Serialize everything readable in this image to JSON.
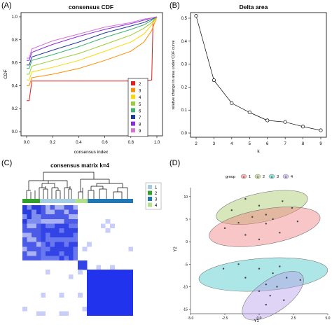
{
  "figure": {
    "panels": [
      {
        "label": "(A)",
        "title": "consensus CDF"
      },
      {
        "label": "(B)",
        "title": "Delta area"
      },
      {
        "label": "(C)",
        "title": "consensus matrix k=4"
      },
      {
        "label": "(D)",
        "title": ""
      }
    ]
  },
  "chart_data": [
    {
      "type": "line",
      "title": "consensus CDF",
      "xlabel": "consensus index",
      "ylabel": "CDF",
      "xlim": [
        0,
        1
      ],
      "ylim": [
        0,
        1
      ],
      "xticks": [
        "0.0",
        "0.2",
        "0.4",
        "0.6",
        "0.8",
        "1.0"
      ],
      "yticks": [
        "0.0",
        "0.2",
        "0.4",
        "0.6",
        "0.8",
        "1.0"
      ],
      "legend": {
        "position": "bottom-right"
      },
      "series": [
        {
          "name": "2",
          "color": "#e41a1c",
          "x": [
            0,
            0.02,
            0.04,
            0.1,
            0.3,
            0.6,
            0.9,
            0.96,
            0.97,
            1.0
          ],
          "y": [
            0.27,
            0.27,
            0.44,
            0.44,
            0.44,
            0.44,
            0.44,
            0.45,
            0.95,
            1.0
          ]
        },
        {
          "name": "3",
          "color": "#ff8c00",
          "x": [
            0,
            0.02,
            0.04,
            0.2,
            0.4,
            0.6,
            0.8,
            0.9,
            0.96,
            1.0
          ],
          "y": [
            0.4,
            0.4,
            0.47,
            0.5,
            0.55,
            0.62,
            0.7,
            0.78,
            0.88,
            1.0
          ]
        },
        {
          "name": "4",
          "color": "#ffd700",
          "x": [
            0,
            0.02,
            0.04,
            0.2,
            0.4,
            0.6,
            0.8,
            0.9,
            0.96,
            1.0
          ],
          "y": [
            0.45,
            0.45,
            0.52,
            0.56,
            0.62,
            0.7,
            0.78,
            0.85,
            0.93,
            1.0
          ]
        },
        {
          "name": "5",
          "color": "#9acd32",
          "x": [
            0,
            0.02,
            0.04,
            0.2,
            0.4,
            0.6,
            0.8,
            0.9,
            0.96,
            1.0
          ],
          "y": [
            0.5,
            0.5,
            0.57,
            0.62,
            0.68,
            0.76,
            0.84,
            0.9,
            0.95,
            1.0
          ]
        },
        {
          "name": "6",
          "color": "#3cb371",
          "x": [
            0,
            0.02,
            0.04,
            0.2,
            0.4,
            0.6,
            0.8,
            0.9,
            0.96,
            1.0
          ],
          "y": [
            0.55,
            0.55,
            0.62,
            0.67,
            0.74,
            0.82,
            0.89,
            0.93,
            0.97,
            1.0
          ]
        },
        {
          "name": "7",
          "color": "#1e3c9e",
          "x": [
            0,
            0.02,
            0.04,
            0.2,
            0.4,
            0.6,
            0.8,
            0.9,
            0.96,
            1.0
          ],
          "y": [
            0.58,
            0.58,
            0.65,
            0.71,
            0.78,
            0.86,
            0.92,
            0.95,
            0.98,
            1.0
          ]
        },
        {
          "name": "8",
          "color": "#8a2be2",
          "x": [
            0,
            0.02,
            0.04,
            0.2,
            0.4,
            0.6,
            0.8,
            0.9,
            0.96,
            1.0
          ],
          "y": [
            0.62,
            0.62,
            0.69,
            0.76,
            0.83,
            0.89,
            0.94,
            0.97,
            0.99,
            1.0
          ]
        },
        {
          "name": "9",
          "color": "#da70d6",
          "x": [
            0,
            0.02,
            0.04,
            0.2,
            0.4,
            0.6,
            0.8,
            0.9,
            0.96,
            1.0
          ],
          "y": [
            0.64,
            0.64,
            0.72,
            0.79,
            0.85,
            0.91,
            0.95,
            0.98,
            0.99,
            1.0
          ]
        }
      ]
    },
    {
      "type": "line",
      "title": "Delta area",
      "xlabel": "k",
      "ylabel": "relative change in area under CDF curve",
      "x": [
        2,
        3,
        4,
        5,
        6,
        7,
        8,
        9
      ],
      "y": [
        0.51,
        0.23,
        0.13,
        0.09,
        0.055,
        0.048,
        0.028,
        0.012
      ],
      "xlim": [
        2,
        9
      ],
      "ylim": [
        0,
        0.5
      ],
      "xticks": [
        "2",
        "3",
        "4",
        "5",
        "6",
        "7",
        "8",
        "9"
      ],
      "yticks": [
        "0.0",
        "0.1",
        "0.2",
        "0.3",
        "0.4",
        "0.5"
      ]
    },
    {
      "type": "heatmap",
      "title": "consensus matrix k=4",
      "legend": {
        "position": "right",
        "entries": [
          {
            "label": "1",
            "color": "#a6cee3"
          },
          {
            "label": "2",
            "color": "#33a02c"
          },
          {
            "label": "3",
            "color": "#1f78b4"
          },
          {
            "label": "4",
            "color": "#b2df8a"
          }
        ]
      },
      "cluster_bar": [
        {
          "cluster": "2",
          "fraction": 0.16
        },
        {
          "cluster": "1",
          "fraction": 0.32
        },
        {
          "cluster": "4",
          "fraction": 0.11
        },
        {
          "cluster": "3",
          "fraction": 0.41
        }
      ]
    },
    {
      "type": "scatter",
      "xlabel": "Y1",
      "ylabel": "Y2",
      "xlim": [
        -5,
        5
      ],
      "ylim": [
        -16,
        12
      ],
      "xticks": [
        "-5.0",
        "-2.5",
        "0.0",
        "2.5",
        "5.0"
      ],
      "yticks": [
        "-15",
        "-10",
        "-5",
        "0",
        "5",
        "10"
      ],
      "legend": {
        "title": "group",
        "position": "top",
        "entries": [
          {
            "label": "1",
            "color": "#f08080"
          },
          {
            "label": "2",
            "color": "#a8c86a"
          },
          {
            "label": "3",
            "color": "#48c8c8"
          },
          {
            "label": "4",
            "color": "#b8a0e8"
          }
        ]
      },
      "series": [
        {
          "name": "1",
          "color": "#f08080",
          "points": [
            [
              -2.5,
              3
            ],
            [
              -1,
              1.5
            ],
            [
              0.5,
              4
            ],
            [
              1.5,
              2
            ],
            [
              0,
              0.5
            ],
            [
              2.8,
              4.5
            ],
            [
              -1.5,
              4.2
            ],
            [
              1,
              5
            ]
          ]
        },
        {
          "name": "2",
          "color": "#a8c86a",
          "points": [
            [
              -2,
              7
            ],
            [
              -1,
              9.5
            ],
            [
              0,
              8
            ],
            [
              0.5,
              6
            ],
            [
              1.7,
              9
            ],
            [
              2.4,
              7.5
            ],
            [
              -0.5,
              5.5
            ]
          ]
        },
        {
          "name": "3",
          "color": "#48c8c8",
          "points": [
            [
              -2.6,
              -6
            ],
            [
              -1.5,
              -5
            ],
            [
              -1,
              -8
            ],
            [
              0,
              -6
            ],
            [
              0.5,
              -9.5
            ],
            [
              1,
              -7
            ],
            [
              2,
              -8
            ],
            [
              3,
              -8.5
            ],
            [
              1.5,
              -5.5
            ]
          ]
        },
        {
          "name": "4",
          "color": "#b8a0e8",
          "points": [
            [
              0,
              -11
            ],
            [
              0.8,
              -12
            ],
            [
              1.3,
              -10
            ],
            [
              1.8,
              -13
            ],
            [
              0.5,
              -14
            ]
          ]
        }
      ]
    }
  ]
}
